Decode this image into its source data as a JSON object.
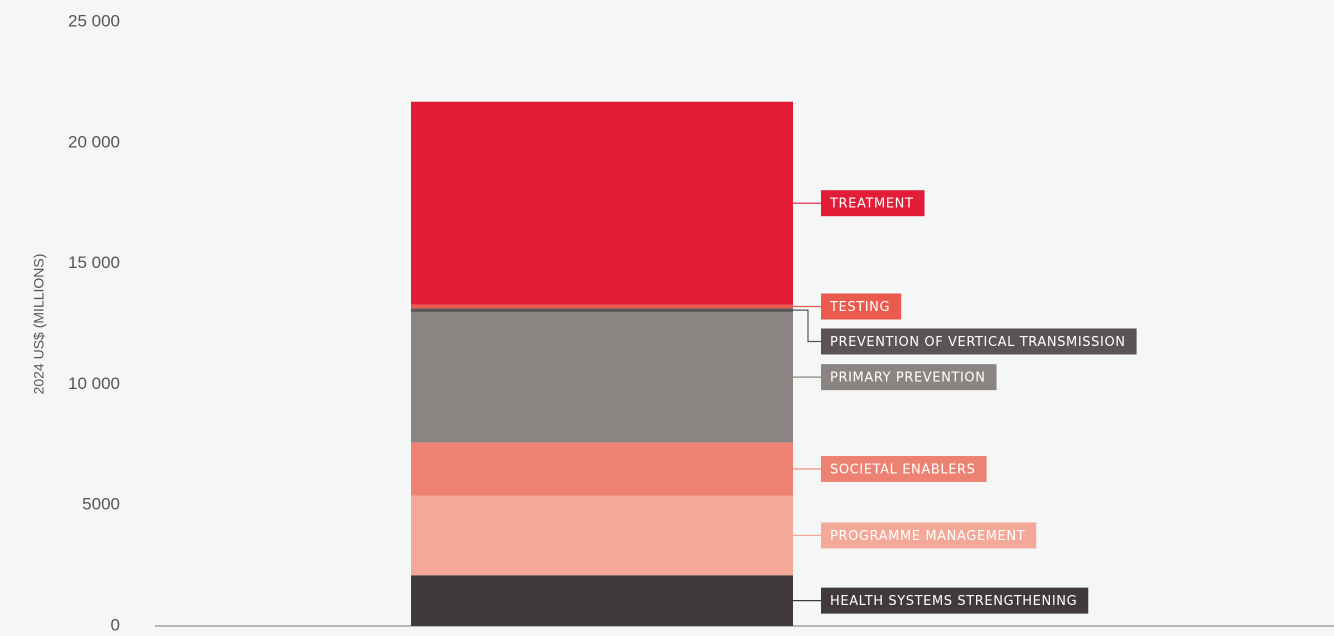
{
  "chart_data": {
    "type": "stacked-bar",
    "ylabel": "2024 US$ (MILLIONS)",
    "ylim": [
      0,
      25000
    ],
    "yticks": [
      0,
      5000,
      {
        "value": 10000,
        "label": "10 000"
      },
      {
        "value": 15000,
        "label": "15 000"
      },
      {
        "value": 20000,
        "label": "20 000"
      },
      {
        "value": 25000,
        "label": "25 000"
      }
    ],
    "series": [
      {
        "name": "HEALTH SYSTEMS STRENGTHENING",
        "color": "#403b3a",
        "values": [
          2100
        ]
      },
      {
        "name": "PROGRAMME MANAGEMENT",
        "color": "#f4a898",
        "values": [
          3300
        ]
      },
      {
        "name": "SOCIETAL ENABLERS",
        "color": "#ed8272",
        "values": [
          2200
        ]
      },
      {
        "name": "PRIMARY PREVENTION",
        "color": "#8a8583",
        "values": [
          5400
        ]
      },
      {
        "name": "PREVENTION OF VERTICAL TRANSMISSION",
        "color": "#5a5454",
        "values": [
          150
        ]
      },
      {
        "name": "TESTING",
        "color": "#ea5a4f",
        "values": [
          150
        ]
      },
      {
        "name": "TREATMENT",
        "color": "#e31c37",
        "values": [
          8400
        ]
      }
    ]
  }
}
